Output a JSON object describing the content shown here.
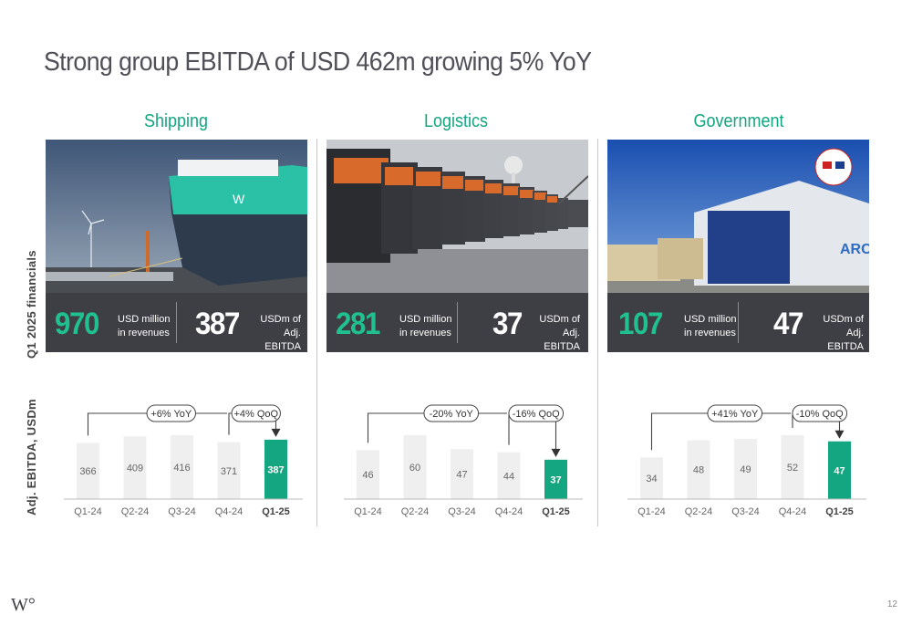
{
  "title": "Strong group EBITDA of USD 462m growing 5% YoY",
  "row_labels": {
    "financials": "Q1 2025 financials",
    "ebitda": "Adj. EBITDA, USDm"
  },
  "segments": [
    {
      "name": "Shipping",
      "photo_icon": "car-carrier-ship-photo",
      "revenue": "970",
      "revenue_label_1": "USD million",
      "revenue_label_2": "in revenues",
      "ebitda": "387",
      "ebitda_label_1": "USDm of",
      "ebitda_label_2": "Adj. EBITDA",
      "yoy_label": "+6% YoY",
      "qoq_label": "+4% QoQ"
    },
    {
      "name": "Logistics",
      "photo_icon": "terminal-tractors-photo",
      "revenue": "281",
      "revenue_label_1": "USD million",
      "revenue_label_2": "in revenues",
      "ebitda": "37",
      "ebitda_label_1": "USDm of",
      "ebitda_label_2": "Adj. EBITDA",
      "yoy_label": "-20% YoY",
      "qoq_label": "-16% QoQ"
    },
    {
      "name": "Government",
      "photo_icon": "government-roro-ship-photo",
      "revenue": "107",
      "revenue_label_1": "USD million",
      "revenue_label_2": "in revenues",
      "ebitda": "47",
      "ebitda_label_1": "USDm of",
      "ebitda_label_2": "Adj. EBITDA",
      "yoy_label": "+41% YoY",
      "qoq_label": "-10% QoQ"
    }
  ],
  "chart_data": [
    {
      "type": "bar",
      "categories": [
        "Q1-24",
        "Q2-24",
        "Q3-24",
        "Q4-24",
        "Q1-25"
      ],
      "values": [
        366,
        409,
        416,
        371,
        387
      ],
      "highlight_index": 4,
      "annotations": [
        "+6% YoY",
        "+4% QoQ"
      ]
    },
    {
      "type": "bar",
      "categories": [
        "Q1-24",
        "Q2-24",
        "Q3-24",
        "Q4-24",
        "Q1-25"
      ],
      "values": [
        46,
        60,
        47,
        44,
        37
      ],
      "highlight_index": 4,
      "annotations": [
        "-20% YoY",
        "-16% QoQ"
      ]
    },
    {
      "type": "bar",
      "categories": [
        "Q1-24",
        "Q2-24",
        "Q3-24",
        "Q4-24",
        "Q1-25"
      ],
      "values": [
        34,
        48,
        49,
        52,
        47
      ],
      "highlight_index": 4,
      "annotations": [
        "+41% YoY",
        "-10% QoQ"
      ]
    }
  ],
  "colors": {
    "accent": "#13a681",
    "highlight_bar": "#13a681",
    "bar": "#efefef",
    "band": "#3e3f45"
  },
  "footer": {
    "logo": "W°",
    "page_number": "12"
  }
}
